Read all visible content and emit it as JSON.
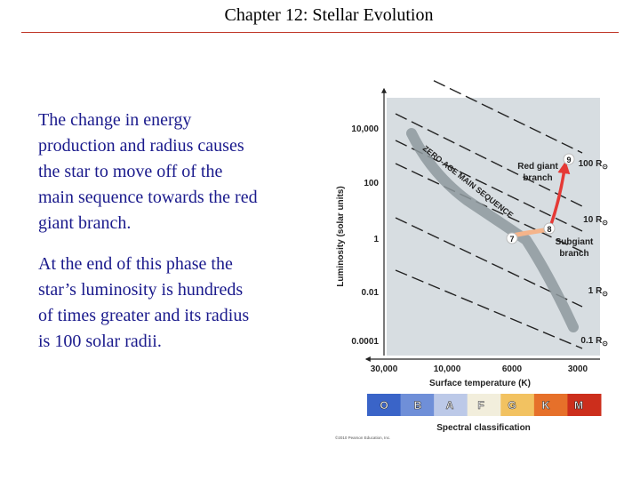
{
  "slide": {
    "title": "Chapter 12: Stellar Evolution",
    "paragraphs": [
      "The change in energy production and radius causes the star to move off of the main sequence towards the red giant branch.",
      "At the end of this phase the star’s luminosity is hundreds of times greater and its radius is 100 solar radii."
    ]
  },
  "figure": {
    "ylabel": "Luminosity (solar units)",
    "xlabel": "Surface temperature (K)",
    "y_ticks": [
      "10,000",
      "100",
      "1",
      "0.01",
      "0.0001"
    ],
    "x_ticks": [
      "30,000",
      "10,000",
      "6000",
      "3000"
    ],
    "radius_labels": [
      "100 R",
      "10 R",
      "1 R",
      "0.1 R"
    ],
    "sun_symbol": "⊙",
    "zams_label": "ZERO-AGE MAIN SEQUENCE",
    "red_giant_label": [
      "Red giant",
      "branch"
    ],
    "subgiant_label": [
      "Subgiant",
      "branch"
    ],
    "stage_numbers": [
      "7",
      "8",
      "9"
    ],
    "spectral_classes": [
      "O",
      "B",
      "A",
      "F",
      "G",
      "K",
      "M"
    ],
    "spectral_label": "Spectral classification",
    "copyright": "©2010 Pearson Education, Inc.",
    "colors": {
      "panel": "#d7dde1",
      "main_sequence": "#8e999e",
      "track": "#e53935",
      "subgiant": "#f5b48a",
      "spectral_bar": [
        "#3a64c8",
        "#6f8fd8",
        "#bcc9e8",
        "#f2eedc",
        "#f2c261",
        "#e6702a",
        "#cc2e1c"
      ]
    }
  }
}
